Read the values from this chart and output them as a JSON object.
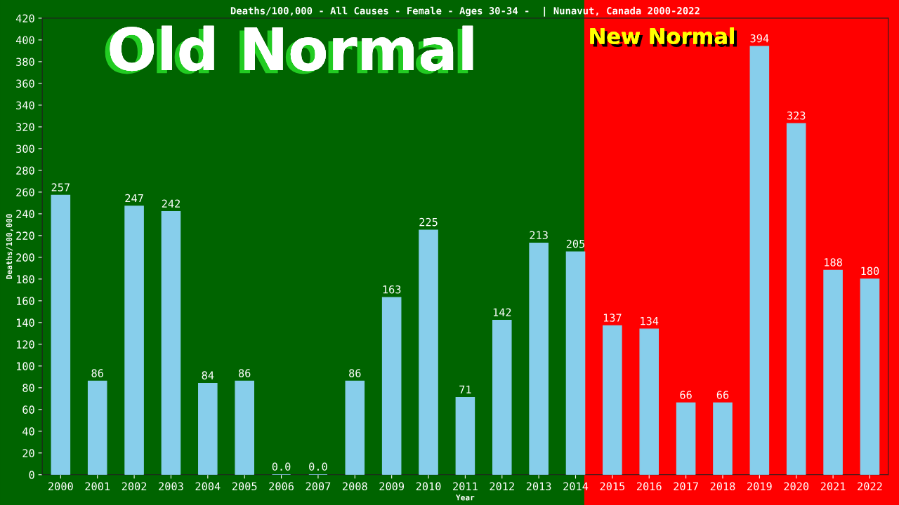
{
  "chart_data": {
    "type": "bar",
    "title": "Deaths/100,000 - All Causes - Female - Ages 30-34 -  | Nunavut, Canada 2000-2022",
    "xlabel": "Year",
    "ylabel": "Deaths/100,000",
    "categories": [
      "2000",
      "2001",
      "2002",
      "2003",
      "2004",
      "2005",
      "2006",
      "2007",
      "2008",
      "2009",
      "2010",
      "2011",
      "2012",
      "2013",
      "2014",
      "2015",
      "2016",
      "2017",
      "2018",
      "2019",
      "2020",
      "2021",
      "2022"
    ],
    "values": [
      257,
      86,
      247,
      242,
      84,
      86,
      0,
      0,
      86,
      163,
      225,
      71,
      142,
      213,
      205,
      137,
      134,
      66,
      66,
      394,
      323,
      188,
      180
    ],
    "value_labels": [
      "257",
      "86",
      "247",
      "242",
      "84",
      "86",
      "0.0",
      "0.0",
      "86",
      "163",
      "225",
      "71",
      "142",
      "213",
      "205",
      "137",
      "134",
      "66",
      "66",
      "394",
      "323",
      "188",
      "180"
    ],
    "color": "#87ceeb",
    "ylim": [
      0,
      420
    ],
    "yticks": [
      0,
      20,
      40,
      60,
      80,
      100,
      120,
      140,
      160,
      180,
      200,
      220,
      240,
      260,
      280,
      300,
      320,
      340,
      360,
      380,
      400,
      420
    ],
    "bands": [
      {
        "axis": "x",
        "from": "2000",
        "to": "2014",
        "label": "Old Normal",
        "color": "#006400"
      },
      {
        "axis": "x",
        "from": "2014",
        "to": "2022",
        "label": "New Normal",
        "color": "#ff0000"
      }
    ],
    "grid": false,
    "legend": false
  }
}
